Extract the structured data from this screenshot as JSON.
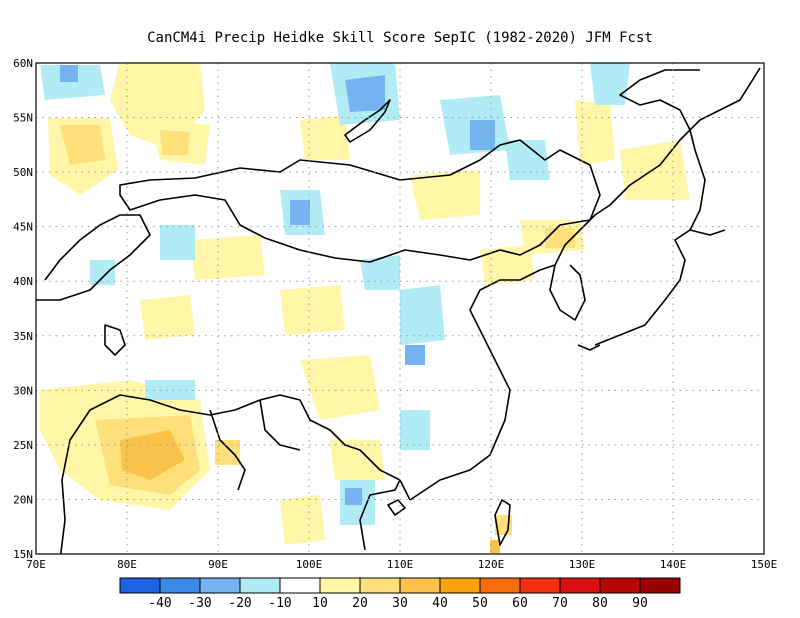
{
  "title": "CanCM4i Precip Heidke Skill Score SepIC (1982-2020) JFM Fcst",
  "map": {
    "lon_range": [
      70,
      150
    ],
    "lat_range": [
      15,
      60
    ],
    "lon_ticks": [
      "70E",
      "80E",
      "90E",
      "100E",
      "110E",
      "120E",
      "130E",
      "140E",
      "150E"
    ],
    "lat_ticks": [
      "15N",
      "20N",
      "25N",
      "30N",
      "35N",
      "40N",
      "45N",
      "50N",
      "55N",
      "60N"
    ],
    "gridlines": "dotted"
  },
  "colorbar": {
    "colors": [
      "#1d62e3",
      "#3c8ae8",
      "#75b3f1",
      "#b1ecf6",
      "#ffffff",
      "#fff6a8",
      "#fde07a",
      "#fbc24b",
      "#f7a10c",
      "#f76e0a",
      "#f33010",
      "#d81010",
      "#b60707",
      "#990000"
    ],
    "labels": [
      "-40",
      "-30",
      "-20",
      "-10",
      "10",
      "20",
      "30",
      "40",
      "50",
      "60",
      "70",
      "80",
      "90"
    ]
  }
}
